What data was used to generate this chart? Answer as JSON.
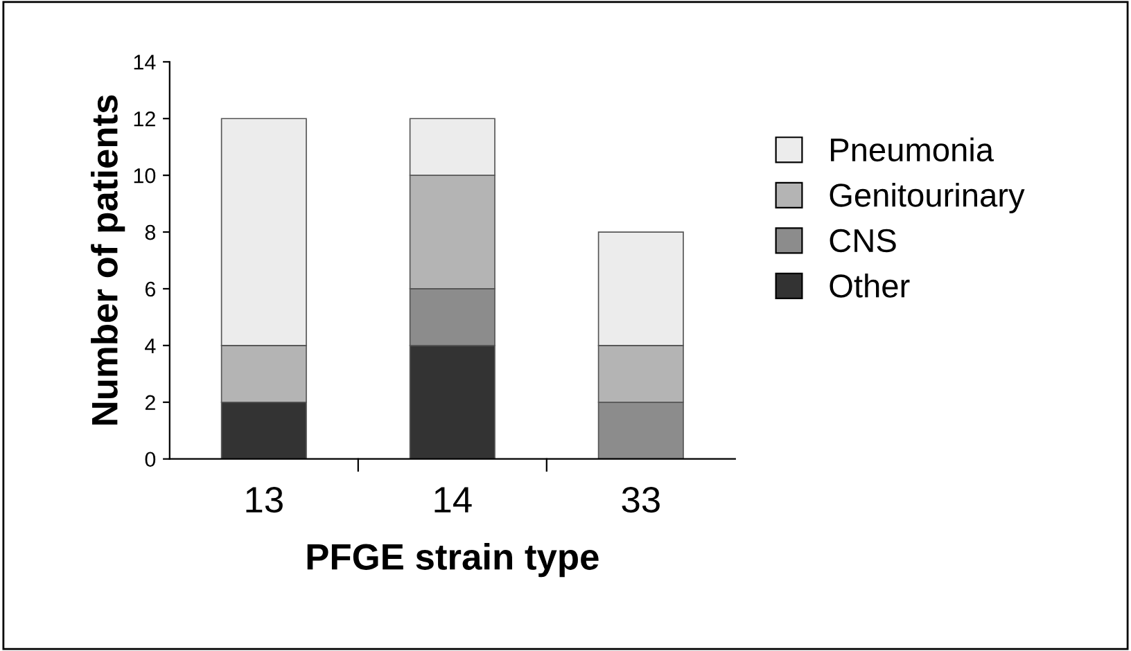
{
  "chart_data": {
    "type": "bar",
    "stacked": true,
    "xlabel": "PFGE strain type",
    "ylabel": "Number of patients",
    "categories": [
      "13",
      "14",
      "33"
    ],
    "series": [
      {
        "name": "Other",
        "color": "#333333",
        "values": [
          2,
          4,
          0
        ]
      },
      {
        "name": "CNS",
        "color": "#8c8c8c",
        "values": [
          0,
          2,
          2
        ]
      },
      {
        "name": "Genitourinary",
        "color": "#b4b4b4",
        "values": [
          2,
          4,
          2
        ]
      },
      {
        "name": "Pneumonia",
        "color": "#ececec",
        "values": [
          8,
          2,
          4
        ]
      }
    ],
    "ylim": [
      0,
      14
    ],
    "yticks": [
      0,
      2,
      4,
      6,
      8,
      10,
      12,
      14
    ],
    "grid": false,
    "legend": "right"
  }
}
